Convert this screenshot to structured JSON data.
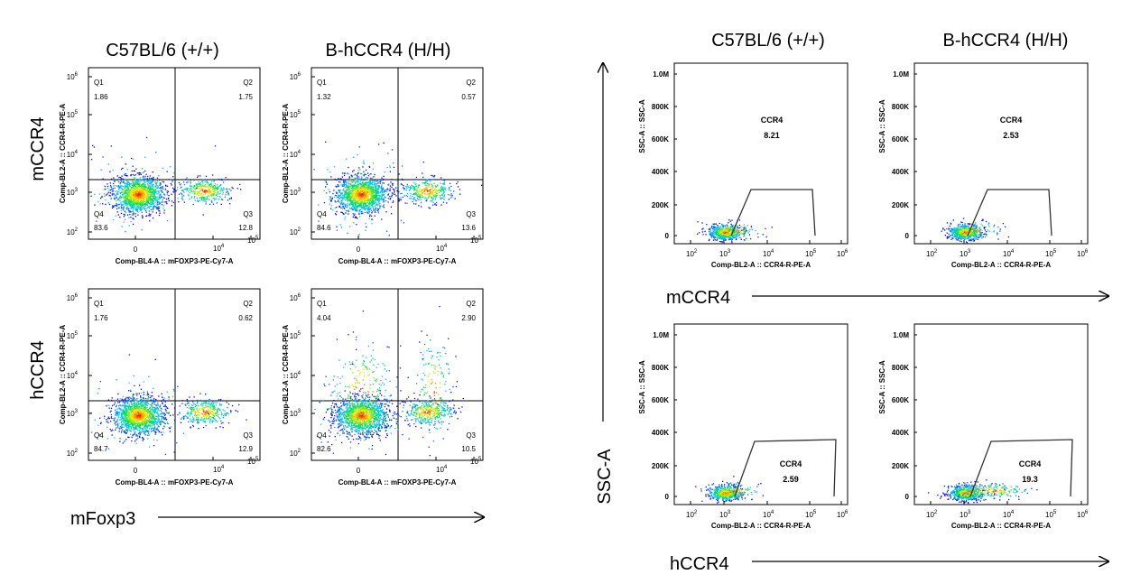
{
  "headers": {
    "left_col1": "C57BL/6 (+/+)",
    "left_col2": "B-hCCR4 (H/H)",
    "right_col1": "C57BL/6 (+/+)",
    "right_col2": "B-hCCR4 (H/H)",
    "row1": "mCCR4",
    "row2": "hCCR4",
    "left_xarrow": "mFoxp3",
    "right_yarrow": "SSC-A",
    "right_xarrow_row1": "mCCR4",
    "right_xarrow_row2": "hCCR4"
  },
  "chart_data": [
    {
      "type": "scatter",
      "id": "L11",
      "xlabel": "Comp-BL4-A :: mFOXP3-PE-Cy7-A",
      "ylabel": "Comp-BL2-A :: CCR4-R-PE-A",
      "quadrants": {
        "Q1": "1.86",
        "Q2": "1.75",
        "Q3": "12.8",
        "Q4": "83.6"
      }
    },
    {
      "type": "scatter",
      "id": "L12",
      "xlabel": "Comp-BL4-A :: mFOXP3-PE-Cy7-A",
      "ylabel": "Comp-BL2-A :: CCR4-R-PE-A",
      "quadrants": {
        "Q1": "1.32",
        "Q2": "0.57",
        "Q3": "13.6",
        "Q4": "84.6"
      }
    },
    {
      "type": "scatter",
      "id": "L21",
      "xlabel": "Comp-BL4-A :: mFOXP3-PE-Cy7-A",
      "ylabel": "Comp-BL2-A :: CCR4-R-PE-A",
      "quadrants": {
        "Q1": "1.76",
        "Q2": "0.62",
        "Q3": "12.9",
        "Q4": "84.7"
      }
    },
    {
      "type": "scatter",
      "id": "L22",
      "xlabel": "Comp-BL4-A :: mFOXP3-PE-Cy7-A",
      "ylabel": "Comp-BL2-A :: CCR4-R-PE-A",
      "quadrants": {
        "Q1": "4.04",
        "Q2": "2.90",
        "Q3": "10.5",
        "Q4": "82.6"
      }
    },
    {
      "type": "scatter",
      "id": "R11",
      "xlabel": "Comp-BL2-A :: CCR4-R-PE-A",
      "ylabel": "SSC-A :: SSC-A",
      "gate_name": "CCR4",
      "gate_value": "8.21"
    },
    {
      "type": "scatter",
      "id": "R12",
      "xlabel": "Comp-BL2-A :: CCR4-R-PE-A",
      "ylabel": "SSC-A :: SSC-A",
      "gate_name": "CCR4",
      "gate_value": "2.53"
    },
    {
      "type": "scatter",
      "id": "R21",
      "xlabel": "Comp-BL2-A :: CCR4-R-PE-A",
      "ylabel": "SSC-A :: SSC-A",
      "gate_name": "CCR4",
      "gate_value": "2.59"
    },
    {
      "type": "scatter",
      "id": "R22",
      "xlabel": "Comp-BL2-A :: CCR4-R-PE-A",
      "ylabel": "SSC-A :: SSC-A",
      "gate_name": "CCR4",
      "gate_value": "19.3"
    }
  ],
  "axes": {
    "left_x_ticks": [
      "0",
      "10",
      "4",
      "10",
      "5"
    ],
    "left_y_ticks": [
      "10",
      "2",
      "10",
      "3",
      "10",
      "4",
      "10",
      "5",
      "10",
      "6"
    ],
    "right_x_ticks": [
      "10",
      "2",
      "10",
      "3",
      "10",
      "4",
      "10",
      "5",
      "10",
      "6"
    ],
    "right_y_ticks": [
      "0",
      "200K",
      "400K",
      "600K",
      "800K",
      "1.0M"
    ]
  }
}
